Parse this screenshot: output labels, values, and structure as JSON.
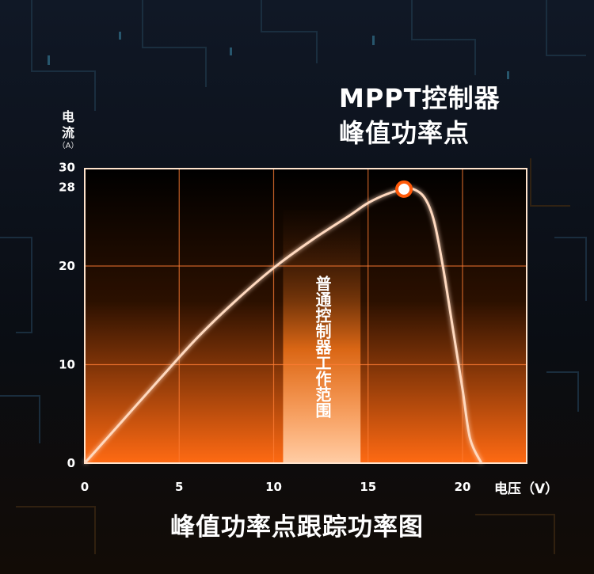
{
  "title": {
    "line1": "MPPT控制器",
    "line2": "峰值功率点"
  },
  "ylabel": {
    "name_line1": "电",
    "name_line2": "流",
    "unit": "（A）"
  },
  "xlabel": "电压（V）",
  "caption": "峰值功率点跟踪功率图",
  "band_label": "普通控制器工作范围",
  "colors": {
    "accent": "#ff6a13",
    "grid": "#ff8a3a",
    "background": "#0b0f16"
  },
  "chart_data": {
    "type": "line",
    "xlim": [
      0,
      21
    ],
    "ylim": [
      0,
      30
    ],
    "x_ticks": [
      "0",
      "5",
      "10",
      "15",
      "20"
    ],
    "x_tick_values": [
      0,
      5,
      10,
      15,
      20
    ],
    "y_ticks": [
      "0",
      "10",
      "20",
      "28",
      "30"
    ],
    "y_tick_values": [
      0,
      10,
      20,
      28,
      30
    ],
    "grid": true,
    "series": [
      {
        "x": [
          0,
          2,
          4,
          6,
          8,
          10,
          12,
          14,
          15,
          16,
          16.9,
          17.4,
          18,
          18.5,
          19,
          19.5,
          20,
          20.4,
          21
        ],
        "y": [
          0,
          4.3,
          8.6,
          12.8,
          16.5,
          19.8,
          22.6,
          25.1,
          26.4,
          27.3,
          27.8,
          27.8,
          26.9,
          24.5,
          19.5,
          13.5,
          7.5,
          2.5,
          0
        ]
      }
    ],
    "peak_point": {
      "x": 16.9,
      "y": 27.8
    },
    "highlight_band": [
      10.5,
      14.6
    ]
  }
}
